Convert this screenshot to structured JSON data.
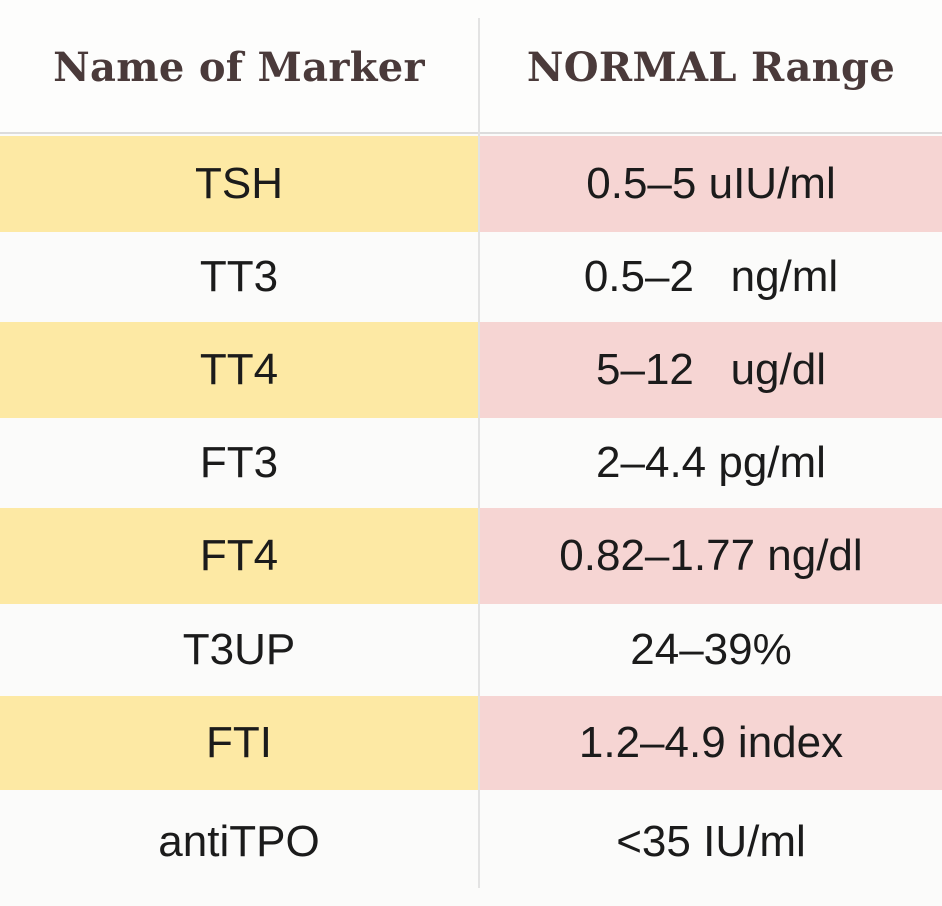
{
  "table": {
    "headers": {
      "marker": "Name of Marker",
      "range": "NORMAL Range"
    },
    "rows": [
      {
        "marker": "TSH",
        "range": "0.5–5 uIU/ml"
      },
      {
        "marker": "TT3",
        "range": "0.5–2   ng/ml"
      },
      {
        "marker": "TT4",
        "range": "5–12   ug/dl"
      },
      {
        "marker": "FT3",
        "range": "2–4.4 pg/ml"
      },
      {
        "marker": "FT4",
        "range": "0.82–1.77 ng/dl"
      },
      {
        "marker": "T3UP",
        "range": "24–39%"
      },
      {
        "marker": "FTI",
        "range": "1.2–4.9 index"
      },
      {
        "marker": "antiTPO",
        "range": "<35 IU/ml"
      }
    ]
  },
  "colors": {
    "marker_shade": "#fde9a4",
    "range_shade": "#f6d5d3",
    "header_text": "#4a3a3a"
  }
}
